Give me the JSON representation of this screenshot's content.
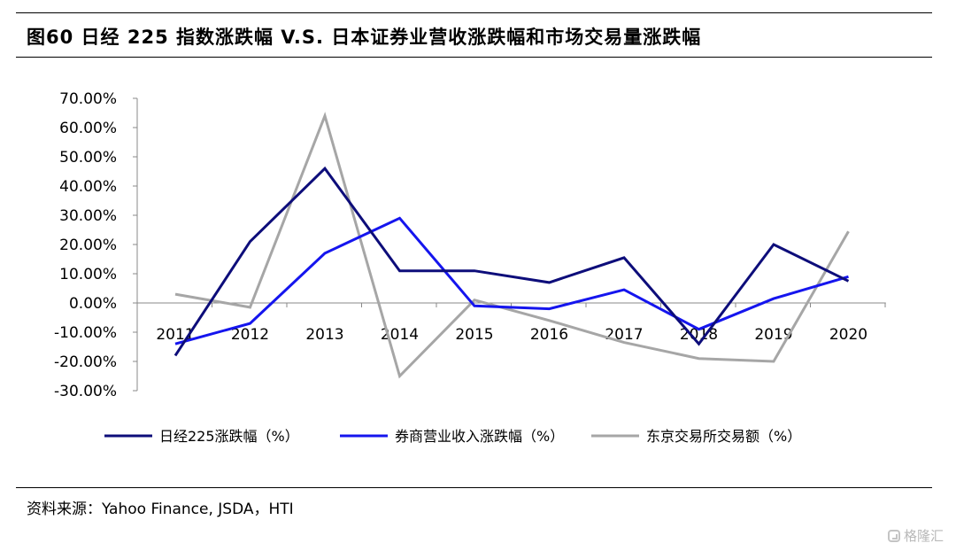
{
  "title": "图60 日经 225 指数涨跌幅 V.S. 日本证券业营收涨跌幅和市场交易量涨跌幅",
  "source": "资料来源：Yahoo Finance, JSDA，HTI",
  "watermark": "格隆汇",
  "chart_data": {
    "type": "line",
    "x": [
      "2011",
      "2012",
      "2013",
      "2014",
      "2015",
      "2016",
      "2017",
      "2018",
      "2019",
      "2020"
    ],
    "ylim": [
      -0.3,
      0.7
    ],
    "yticks": [
      0.7,
      0.6,
      0.5,
      0.4,
      0.3,
      0.2,
      0.1,
      0.0,
      -0.1,
      -0.2,
      -0.3
    ],
    "ytick_labels": [
      "70.00%",
      "60.00%",
      "50.00%",
      "40.00%",
      "30.00%",
      "20.00%",
      "10.00%",
      "0.00%",
      "-10.00%",
      "-20.00%",
      "-30.00%"
    ],
    "grid": false,
    "legend_position": "bottom",
    "series": [
      {
        "name": "日经225涨跌幅（%）",
        "color": "#0d0d7a",
        "values": [
          -0.18,
          0.21,
          0.46,
          0.11,
          0.11,
          0.07,
          0.155,
          -0.14,
          0.2,
          0.075
        ]
      },
      {
        "name": "券商营业收入涨跌幅（%）",
        "color": "#1515ee",
        "values": [
          -0.14,
          -0.07,
          0.17,
          0.29,
          -0.01,
          -0.02,
          0.045,
          -0.09,
          0.015,
          0.09
        ]
      },
      {
        "name": "东京交易所交易额（%）",
        "color": "#a6a6a6",
        "values": [
          0.03,
          -0.015,
          0.64,
          -0.25,
          0.01,
          -0.06,
          -0.135,
          -0.19,
          -0.2,
          0.245
        ]
      }
    ]
  }
}
